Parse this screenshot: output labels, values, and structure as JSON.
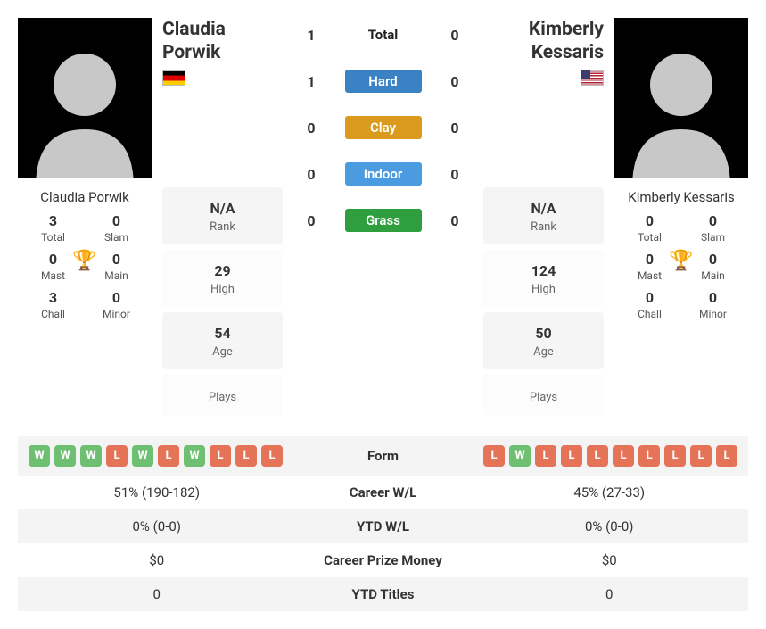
{
  "colors": {
    "win": "#6fbf73",
    "loss": "#e57358",
    "trophy": "#4a7bd8",
    "hard": "#3b82c4",
    "clay": "#d99a1e",
    "indoor": "#4a9be0",
    "grass": "#2e9e3f"
  },
  "p1": {
    "name": "Claudia Porwik",
    "flag": "de",
    "rank": "N/A",
    "high": "29",
    "age": "54",
    "plays": "",
    "titles": {
      "total": "3",
      "slam": "0",
      "mast": "0",
      "main": "0",
      "chall": "3",
      "minor": "0"
    },
    "form": [
      "W",
      "W",
      "W",
      "L",
      "W",
      "L",
      "W",
      "L",
      "L",
      "L"
    ],
    "career_wl": "51% (190-182)",
    "ytd_wl": "0% (0-0)",
    "prize": "$0",
    "ytd_titles": "0"
  },
  "p2": {
    "name": "Kimberly Kessaris",
    "flag": "us",
    "rank": "N/A",
    "high": "124",
    "age": "50",
    "plays": "",
    "titles": {
      "total": "0",
      "slam": "0",
      "mast": "0",
      "main": "0",
      "chall": "0",
      "minor": "0"
    },
    "form": [
      "L",
      "W",
      "L",
      "L",
      "L",
      "L",
      "L",
      "L",
      "L",
      "L"
    ],
    "career_wl": "45% (27-33)",
    "ytd_wl": "0% (0-0)",
    "prize": "$0",
    "ytd_titles": "0"
  },
  "h2h": {
    "total": {
      "p1": "1",
      "p2": "0",
      "label": "Total"
    },
    "hard": {
      "p1": "1",
      "p2": "0",
      "label": "Hard"
    },
    "clay": {
      "p1": "0",
      "p2": "0",
      "label": "Clay"
    },
    "indoor": {
      "p1": "0",
      "p2": "0",
      "label": "Indoor"
    },
    "grass": {
      "p1": "0",
      "p2": "0",
      "label": "Grass"
    }
  },
  "labels": {
    "rank": "Rank",
    "high": "High",
    "age": "Age",
    "plays": "Plays",
    "total": "Total",
    "slam": "Slam",
    "mast": "Mast",
    "main": "Main",
    "chall": "Chall",
    "minor": "Minor",
    "form": "Form",
    "career_wl": "Career W/L",
    "ytd_wl": "YTD W/L",
    "prize": "Career Prize Money",
    "ytd_titles": "YTD Titles"
  }
}
